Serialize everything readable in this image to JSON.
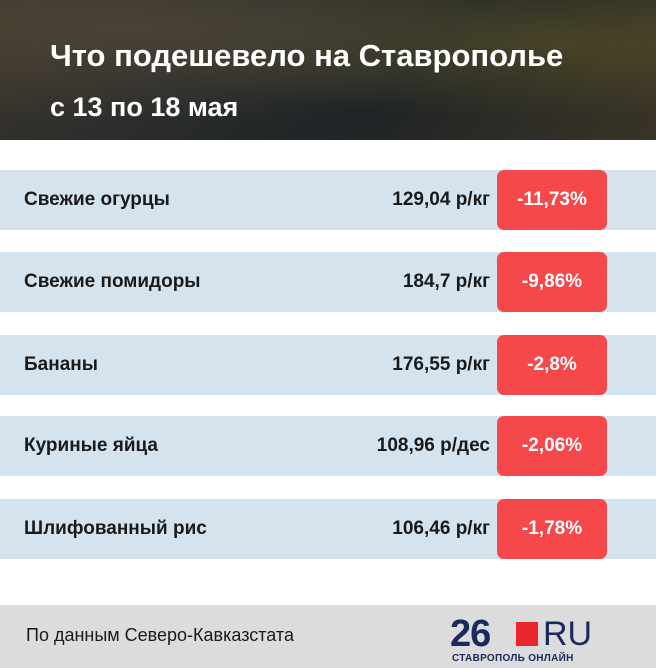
{
  "header": {
    "title": "Что подешевело на Ставрополье",
    "subtitle": "с 13 по 18 мая"
  },
  "table": {
    "rows": [
      [
        "Свежие огурцы",
        "129,04 р/кг",
        "-11,73%"
      ],
      [
        "Свежие помидоры",
        "184,7 р/кг",
        "-9,86%"
      ],
      [
        "Бананы",
        "176,55 р/кг",
        "-2,8%"
      ],
      [
        "Куриные яйца",
        "108,96 р/дес",
        "-2,06%"
      ],
      [
        "Шлифованный рис",
        "106,46 р/кг",
        "-1,78%"
      ]
    ]
  },
  "footer": {
    "source": "По данным Северо-Кавказстата",
    "logo_number": "26",
    "logo_domain": "RU",
    "logo_city": "СТАВРОПОЛЬ ОНЛАЙН"
  }
}
